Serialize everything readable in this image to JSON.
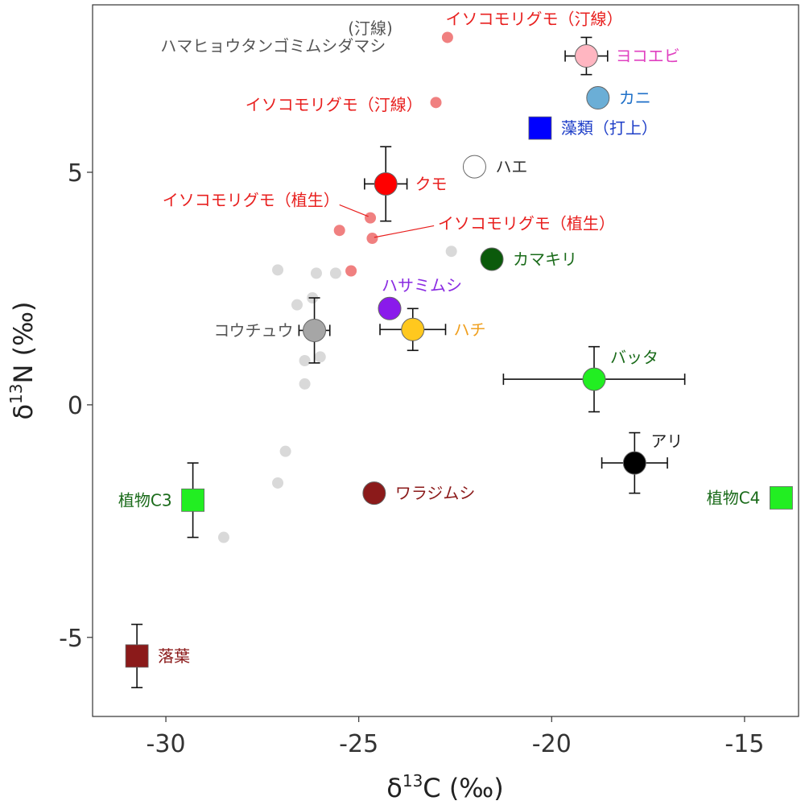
{
  "chart_data": {
    "type": "scatter",
    "title": "",
    "xlabel": {
      "prefix": "δ",
      "sup": "13",
      "suffix": "C (‰)"
    },
    "ylabel": {
      "prefix": "δ",
      "sup": "13",
      "suffix": "N (‰)"
    },
    "xlim": [
      -31.9,
      -13.6
    ],
    "ylim": [
      -6.7,
      8.6
    ],
    "xticks": [
      -30,
      -25,
      -20,
      -15
    ],
    "xtick_labels": [
      "-30",
      "-25",
      "-20",
      "-15"
    ],
    "yticks": [
      -5,
      0,
      5
    ],
    "ytick_labels": [
      "-5",
      "0",
      "5"
    ],
    "grid": false,
    "legend": "none",
    "background_points": {
      "color": "#d9d9d9",
      "points": [
        {
          "x": -27.1,
          "y": 2.9
        },
        {
          "x": -26.1,
          "y": 2.83
        },
        {
          "x": -25.6,
          "y": 2.83
        },
        {
          "x": -26.2,
          "y": 2.3
        },
        {
          "x": -26.6,
          "y": 2.15
        },
        {
          "x": -26.4,
          "y": 0.95
        },
        {
          "x": -26.0,
          "y": 1.03
        },
        {
          "x": -26.4,
          "y": 0.45
        },
        {
          "x": -26.9,
          "y": -1.0
        },
        {
          "x": -27.1,
          "y": -1.68
        },
        {
          "x": -28.5,
          "y": -2.85
        },
        {
          "x": -22.6,
          "y": 3.3
        }
      ]
    },
    "highlight_points": {
      "color": "#f08080",
      "points": [
        {
          "x": -22.7,
          "y": 7.9
        },
        {
          "x": -23.0,
          "y": 6.5
        },
        {
          "x": -24.7,
          "y": 4.02
        },
        {
          "x": -25.5,
          "y": 3.75
        },
        {
          "x": -24.65,
          "y": 3.58
        },
        {
          "x": -25.2,
          "y": 2.88
        }
      ]
    },
    "groups": [
      {
        "name": "クモ",
        "x": -24.3,
        "y": 4.75,
        "xerr": 0.55,
        "yerr": 0.8,
        "color": "#ff0000",
        "label_color": "#e8201f",
        "shape": "circle",
        "label_pos": "right"
      },
      {
        "name": "ヨコエビ",
        "x": -19.1,
        "y": 7.5,
        "xerr": 0.55,
        "yerr": 0.4,
        "color": "#ffb6c1",
        "label_color": "#e040c0",
        "shape": "circle",
        "label_pos": "right"
      },
      {
        "name": "カニ",
        "x": -18.8,
        "y": 6.6,
        "xerr": 0,
        "yerr": 0,
        "color": "#6baed6",
        "label_color": "#1f70c8",
        "shape": "circle",
        "label_pos": "right"
      },
      {
        "name": "藻類（打上）",
        "x": -20.3,
        "y": 5.95,
        "xerr": 0,
        "yerr": 0,
        "color": "#0000ff",
        "label_color": "#1f3fc8",
        "shape": "square",
        "label_pos": "right"
      },
      {
        "name": "ハエ",
        "x": -22.0,
        "y": 5.12,
        "xerr": 0,
        "yerr": 0,
        "color": "#ffffff",
        "label_color": "#333333",
        "shape": "circle",
        "label_pos": "right"
      },
      {
        "name": "カマキリ",
        "x": -21.55,
        "y": 3.13,
        "xerr": 0,
        "yerr": 0,
        "color": "#0b5a0b",
        "label_color": "#1a6b1a",
        "shape": "circle",
        "label_pos": "right"
      },
      {
        "name": "ハサミムシ",
        "x": -24.2,
        "y": 2.07,
        "xerr": 0,
        "yerr": 0,
        "color": "#8a1aeb",
        "label_color": "#8a2be2",
        "shape": "circle",
        "label_pos": "above"
      },
      {
        "name": "ハチ",
        "x": -23.6,
        "y": 1.62,
        "xerr": 0.85,
        "yerr": 0.45,
        "color": "#ffc81e",
        "label_color": "#f0a020",
        "shape": "circle",
        "label_pos": "right"
      },
      {
        "name": "コウチュウ",
        "x": -26.15,
        "y": 1.6,
        "xerr": 0.4,
        "yerr": 0.7,
        "color": "#a6a6a6",
        "label_color": "#555555",
        "shape": "circle",
        "label_pos": "left"
      },
      {
        "name": "バッタ",
        "x": -18.9,
        "y": 0.55,
        "xerr": 2.35,
        "yerr": 0.7,
        "color": "#22ee22",
        "label_color": "#1a6b1a",
        "shape": "circle",
        "label_pos": "aboveright"
      },
      {
        "name": "アリ",
        "x": -17.85,
        "y": -1.25,
        "xerr": 0.85,
        "yerr": 0.65,
        "color": "#000000",
        "label_color": "#222222",
        "shape": "circle",
        "label_pos": "aboveright"
      },
      {
        "name": "ワラジムシ",
        "x": -24.6,
        "y": -1.9,
        "xerr": 0,
        "yerr": 0,
        "color": "#8b1a1a",
        "label_color": "#8b1a1a",
        "shape": "circle",
        "label_pos": "right"
      },
      {
        "name": "植物C3",
        "x": -29.3,
        "y": -2.05,
        "xerr": 0,
        "yerr": 0.8,
        "color": "#22ee22",
        "label_color": "#1a6b1a",
        "shape": "square",
        "label_pos": "left"
      },
      {
        "name": "植物C4",
        "x": -14.05,
        "y": -2.0,
        "xerr": 0,
        "yerr": 0,
        "color": "#22ee22",
        "label_color": "#1a6b1a",
        "shape": "square",
        "label_pos": "left"
      },
      {
        "name": "落葉",
        "x": -30.75,
        "y": -5.4,
        "xerr": 0,
        "yerr": 0.68,
        "color": "#8b1a1a",
        "label_color": "#8b1a1a",
        "shape": "square",
        "label_pos": "right"
      }
    ],
    "annotations": [
      {
        "text": "(汀線)",
        "color": "#555555",
        "anchor": "middle",
        "x": -24.7,
        "y": 8.1
      },
      {
        "text": "ハマヒョウタンゴミムシダマシ",
        "color": "#555555",
        "anchor": "end",
        "x": -24.3,
        "y": 7.72
      },
      {
        "text": "イソコモリグモ（汀線）",
        "color": "#e8201f",
        "anchor": "start",
        "x": -22.75,
        "y": 8.3
      },
      {
        "text": "イソコモリグモ（汀線）",
        "color": "#e8201f",
        "anchor": "end",
        "x": -23.35,
        "y": 6.45
      },
      {
        "text": "イソコモリグモ（植生）",
        "color": "#e8201f",
        "anchor": "end",
        "x": -25.5,
        "y": 4.4
      },
      {
        "text": "イソコモリグモ（植生）",
        "color": "#e8201f",
        "anchor": "start",
        "x": -22.95,
        "y": 3.9
      }
    ],
    "leader_lines": [
      {
        "x1": -25.5,
        "y1": 4.3,
        "x2": -24.75,
        "y2": 4.05,
        "color": "#e8201f"
      },
      {
        "x1": -23.05,
        "y1": 3.85,
        "x2": -24.6,
        "y2": 3.6,
        "color": "#e8201f"
      }
    ]
  }
}
